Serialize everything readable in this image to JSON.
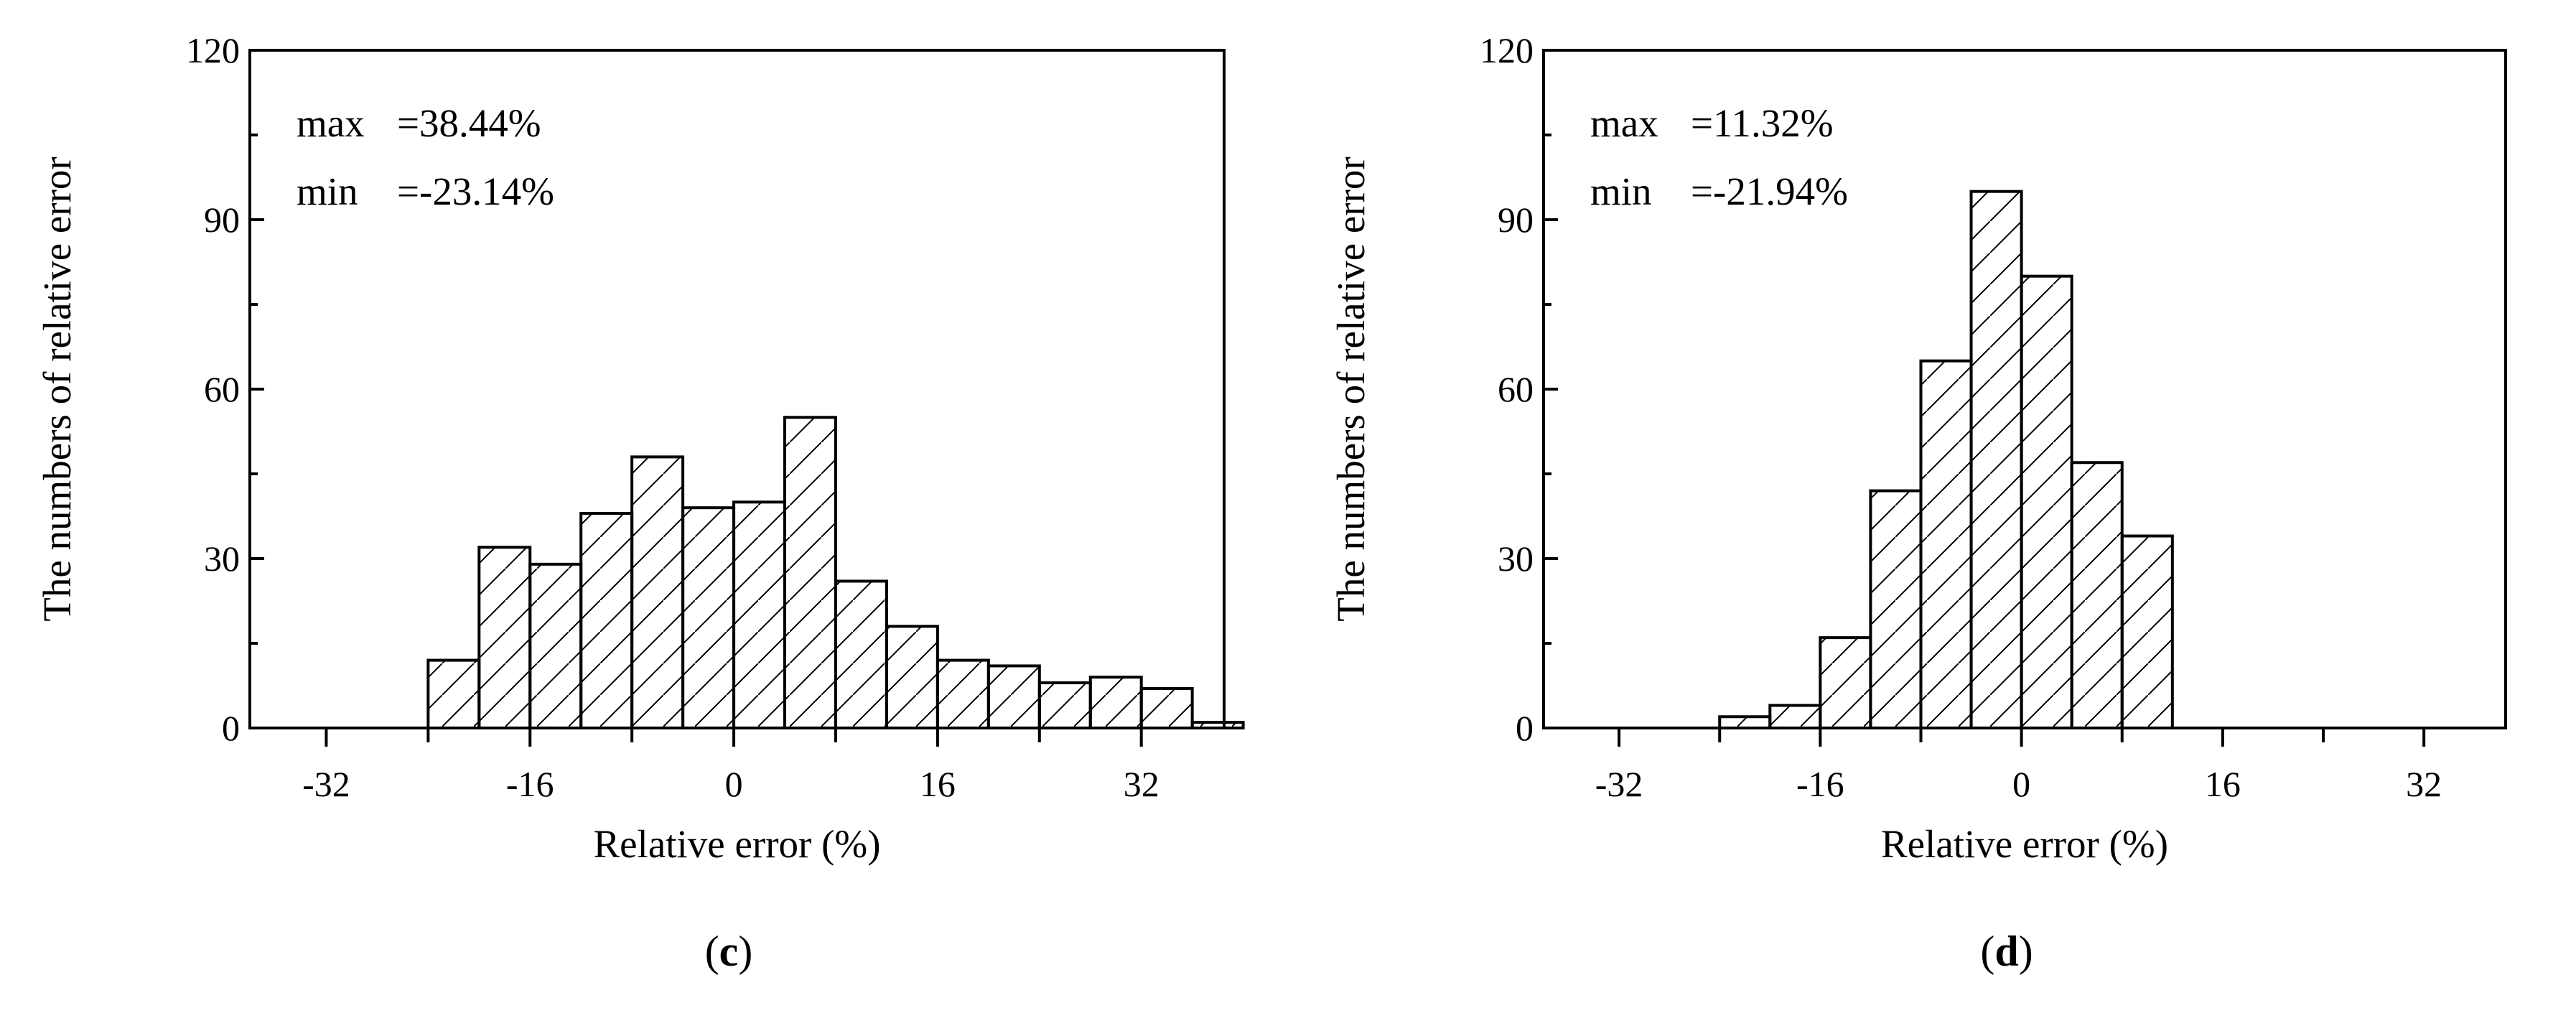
{
  "chart_data": [
    {
      "type": "bar",
      "panel_label": "c",
      "xlabel": "Relative error (%)",
      "ylabel": "The numbers of relative error",
      "xlim": [
        -38,
        38.5
      ],
      "ylim": [
        0,
        120
      ],
      "xticks": [
        -32,
        -16,
        0,
        16,
        32
      ],
      "yticks": [
        0,
        30,
        60,
        90,
        120
      ],
      "bin_width": 4,
      "bins_left": [
        -24,
        -20,
        -16,
        -12,
        -8,
        -4,
        0,
        4,
        8,
        12,
        16,
        20,
        24,
        28,
        32,
        36
      ],
      "values": [
        12,
        32,
        29,
        38,
        48,
        39,
        40,
        55,
        26,
        18,
        12,
        11,
        8,
        9,
        7,
        1
      ],
      "annotations": [
        {
          "name": "max",
          "value": "=38.44%"
        },
        {
          "name": "min",
          "value": "=-23.14%"
        }
      ],
      "grid": false,
      "hatch": "diagonal"
    },
    {
      "type": "bar",
      "panel_label": "d",
      "xlabel": "Relative error (%)",
      "ylabel": "The numbers of relative error",
      "xlim": [
        -38,
        38.5
      ],
      "ylim": [
        0,
        120
      ],
      "xticks": [
        -32,
        -16,
        0,
        16,
        32
      ],
      "yticks": [
        0,
        30,
        60,
        90,
        120
      ],
      "bin_width": 4,
      "bins_left": [
        -24,
        -20,
        -16,
        -12,
        -8,
        -4,
        0,
        4,
        8
      ],
      "values": [
        2,
        4,
        16,
        42,
        65,
        95,
        80,
        47,
        34
      ],
      "annotations": [
        {
          "name": "max",
          "value": "=11.32%"
        },
        {
          "name": "min",
          "value": "=-21.94%"
        }
      ],
      "grid": false,
      "hatch": "diagonal"
    }
  ]
}
